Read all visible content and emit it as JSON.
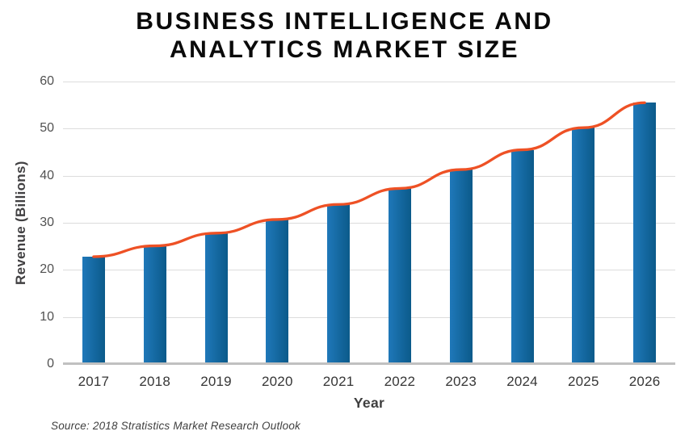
{
  "title": {
    "line1": "BUSINESS INTELLIGENCE AND",
    "line2": "ANALYTICS MARKET SIZE"
  },
  "source_note": "Source: 2018 Stratistics Market Research Outlook",
  "chart_data": {
    "type": "bar",
    "title": "BUSINESS INTELLIGENCE AND ANALYTICS MARKET SIZE",
    "categories": [
      "2017",
      "2018",
      "2019",
      "2020",
      "2021",
      "2022",
      "2023",
      "2024",
      "2025",
      "2026"
    ],
    "values": [
      22.8,
      25.1,
      27.8,
      30.7,
      33.9,
      37.3,
      41.3,
      45.5,
      50.2,
      55.5
    ],
    "trendline": {
      "present": true,
      "through": "bar-top-centers",
      "values": [
        22.8,
        25.1,
        27.8,
        30.7,
        33.9,
        37.3,
        41.3,
        45.5,
        50.2,
        55.5
      ]
    },
    "xlabel": "Year",
    "ylabel": "Revenue (Billions)",
    "ylim": [
      0,
      60
    ],
    "yticks": [
      0,
      10,
      20,
      30,
      40,
      50,
      60
    ],
    "grid": true,
    "legend": "none",
    "colors": {
      "bar_gradient_left": "#1f78b9",
      "bar_gradient_right": "#0b5a8a",
      "trend_line": "#ee5125",
      "gridline": "#dcdcdc",
      "axis_line": "#c0c0c0",
      "tick_text": "#515151",
      "title_text": "#0a0a0a"
    }
  }
}
